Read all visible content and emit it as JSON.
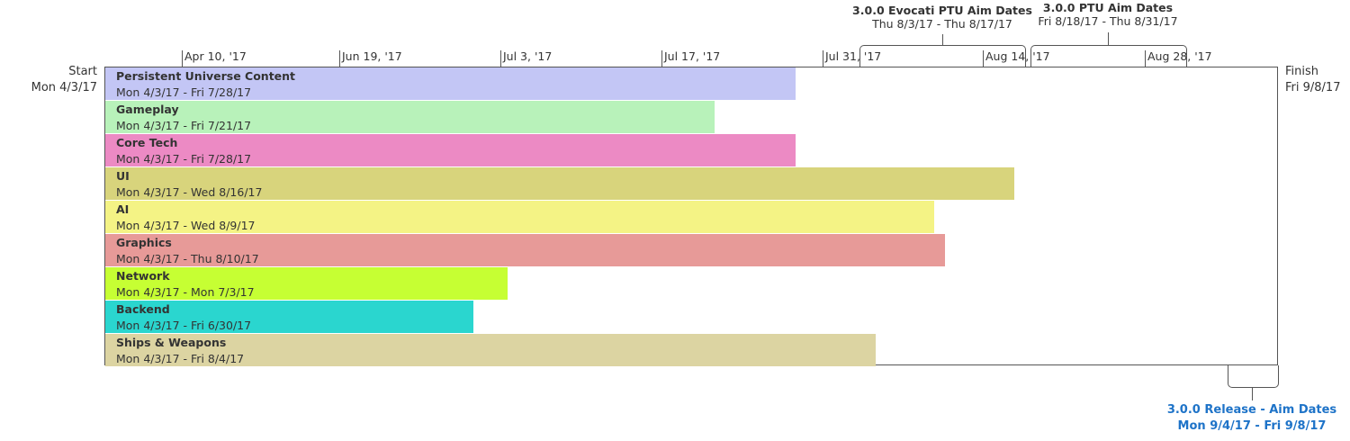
{
  "timeline": {
    "start": {
      "label": "Start",
      "date": "Mon 4/3/17"
    },
    "finish": {
      "label": "Finish",
      "date": "Fri 9/8/17"
    },
    "ticks": [
      "Apr 10, '17",
      "Jun 19, '17",
      "Jul 3, '17",
      "Jul 17, '17",
      "Jul 31, '17",
      "Aug 14, '17",
      "Aug 28, '17"
    ]
  },
  "callouts": {
    "evocati": {
      "title": "3.0.0 Evocati PTU Aim Dates",
      "dates": "Thu 8/3/17 - Thu 8/17/17"
    },
    "ptu": {
      "title": "3.0.0 PTU Aim Dates",
      "dates": "Fri 8/18/17 - Thu 8/31/17"
    },
    "release": {
      "title": "3.0.0 Release - Aim Dates",
      "dates": "Mon 9/4/17 - Fri 9/8/17",
      "color": "#1e73c8"
    }
  },
  "chart_data": {
    "type": "bar",
    "orientation": "horizontal",
    "series": [
      {
        "name": "Persistent Universe Content",
        "start": "2017-04-03",
        "end": "2017-07-28",
        "dates": "Mon 4/3/17 - Fri 7/28/17",
        "color": "#c3c6f5"
      },
      {
        "name": "Gameplay",
        "start": "2017-04-03",
        "end": "2017-07-21",
        "dates": "Mon 4/3/17 - Fri 7/21/17",
        "color": "#b8f2ba"
      },
      {
        "name": "Core Tech",
        "start": "2017-04-03",
        "end": "2017-07-28",
        "dates": "Mon 4/3/17 - Fri 7/28/17",
        "color": "#ec8ac4"
      },
      {
        "name": "UI",
        "start": "2017-04-03",
        "end": "2017-08-16",
        "dates": "Mon 4/3/17 - Wed 8/16/17",
        "color": "#d8d47c"
      },
      {
        "name": "AI",
        "start": "2017-04-03",
        "end": "2017-08-09",
        "dates": "Mon 4/3/17 - Wed 8/9/17",
        "color": "#f4f385"
      },
      {
        "name": "Graphics",
        "start": "2017-04-03",
        "end": "2017-08-10",
        "dates": "Mon 4/3/17 - Thu 8/10/17",
        "color": "#e79a98"
      },
      {
        "name": "Network",
        "start": "2017-04-03",
        "end": "2017-07-03",
        "dates": "Mon 4/3/17 - Mon 7/3/17",
        "color": "#c6ff33"
      },
      {
        "name": "Backend",
        "start": "2017-04-03",
        "end": "2017-06-30",
        "dates": "Mon 4/3/17 - Fri 6/30/17",
        "color": "#2ad6cf"
      },
      {
        "name": "Ships & Weapons",
        "start": "2017-04-03",
        "end": "2017-08-04",
        "dates": "Mon 4/3/17 - Fri 8/4/17",
        "color": "#dcd4a2"
      }
    ]
  }
}
